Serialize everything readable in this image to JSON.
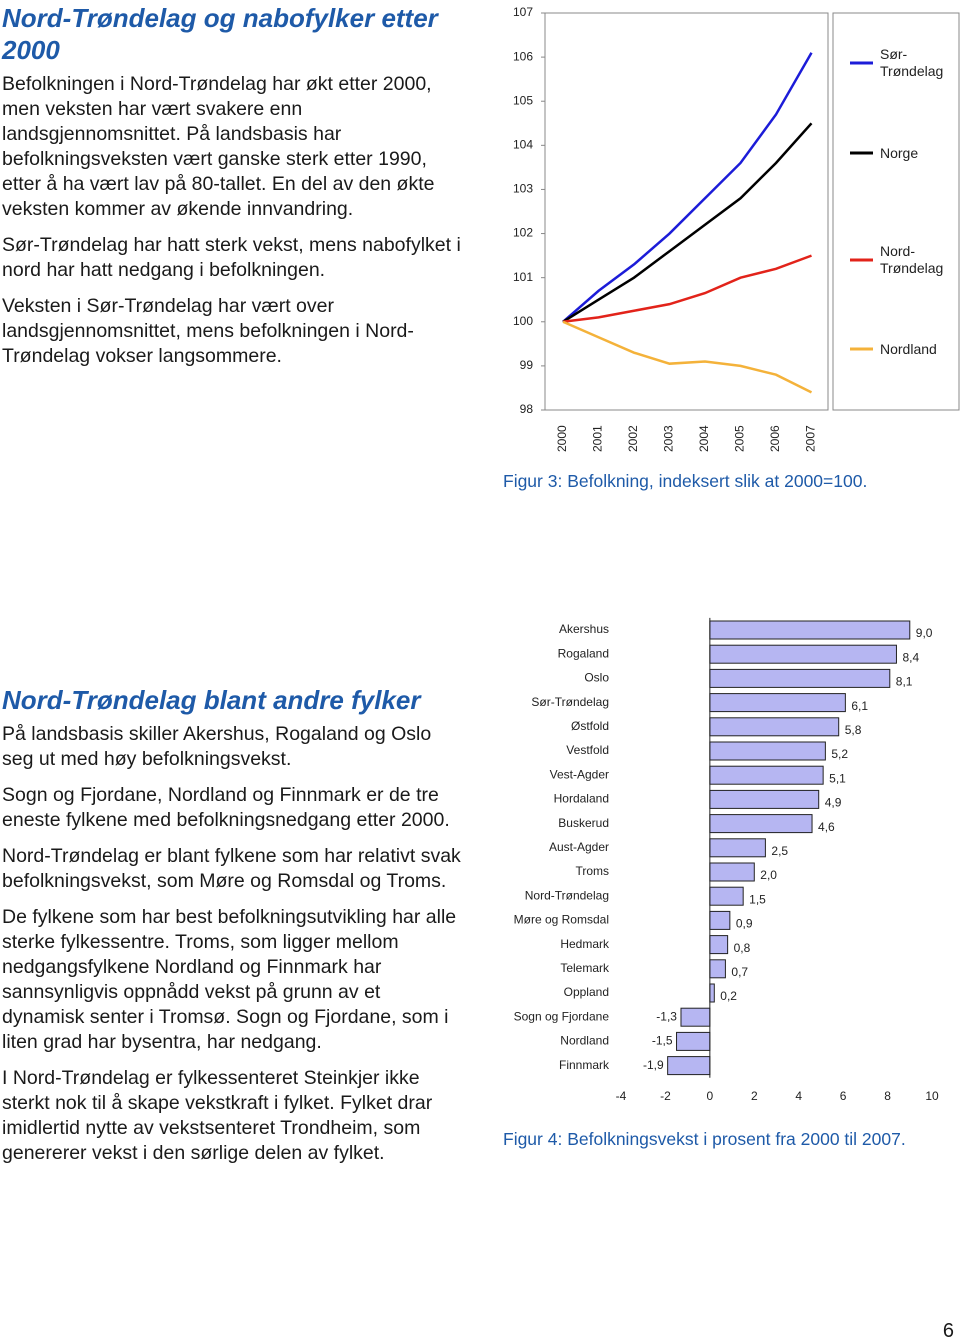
{
  "sections": [
    {
      "title": "Nord-Trøndelag og nabofylker etter 2000",
      "paragraphs": [
        "Befolkningen i Nord-Trøndelag har økt etter 2000, men veksten har vært svakere enn landsgjennomsnittet. På landsbasis har befolkningsveksten vært ganske sterk etter 1990, etter å ha vært lav på 80-tallet. En del av den økte veksten kommer av økende innvandring.",
        "Sør-Trøndelag har hatt sterk vekst, mens nabofylket i nord har hatt nedgang i befolkningen.",
        "Veksten i Sør-Trøndelag har vært over landsgjennomsnittet, mens befolkningen i Nord-Trøndelag vokser langsommere."
      ]
    },
    {
      "title": "Nord-Trøndelag blant andre fylker",
      "paragraphs": [
        "På landsbasis skiller Akershus, Rogaland og Oslo seg ut med høy befolkningsvekst.",
        "Sogn og Fjordane, Nordland og Finnmark er de tre eneste fylkene med befolkningsnedgang etter 2000.",
        "Nord-Trøndelag er blant fylkene som har relativt svak befolkningsvekst, som Møre og Romsdal og Troms.",
        "De fylkene som har best befolkningsutvikling har alle sterke fylkessentre. Troms, som ligger mellom nedgangsfylkene Nordland og Finnmark har sannsynligvis oppnådd vekst på grunn av et dynamisk senter i Tromsø. Sogn og Fjordane, som i liten grad har bysentra, har nedgang.",
        "I Nord-Trøndelag er fylkessenteret Steinkjer ikke sterkt nok til å skape vekstkraft i fylket. Fylket drar imidlertid nytte av vekstsenteret Trondheim, som genererer vekst i den sørlige delen av fylket."
      ]
    }
  ],
  "chart_data": [
    {
      "type": "line",
      "caption": "Figur 3: Befolkning, indeksert slik at 2000=100.",
      "x": [
        "2000",
        "2001",
        "2002",
        "2003",
        "2004",
        "2005",
        "2006",
        "2007"
      ],
      "series": [
        {
          "name": "Sør-Trøndelag",
          "color": "#1c1cd8",
          "values": [
            100,
            100.7,
            101.3,
            102.0,
            102.8,
            103.6,
            104.7,
            106.1
          ]
        },
        {
          "name": "Norge",
          "color": "#000000",
          "values": [
            100,
            100.5,
            101.0,
            101.6,
            102.2,
            102.8,
            103.6,
            104.5
          ]
        },
        {
          "name": "Nord-Trøndelag",
          "color": "#e2231a",
          "values": [
            100,
            100.1,
            100.25,
            100.4,
            100.65,
            101.0,
            101.2,
            101.5
          ]
        },
        {
          "name": "Nordland",
          "color": "#f4b23a",
          "values": [
            100,
            99.65,
            99.3,
            99.05,
            99.1,
            99.0,
            98.8,
            98.4
          ]
        }
      ],
      "ylim": [
        98,
        107
      ],
      "yticks": [
        98,
        99,
        100,
        101,
        102,
        103,
        104,
        105,
        106,
        107
      ],
      "legend": "right"
    },
    {
      "type": "hbar",
      "caption": "Figur 4: Befolkningsvekst i prosent fra 2000 til 2007.",
      "categories": [
        "Akershus",
        "Rogaland",
        "Oslo",
        "Sør-Trøndelag",
        "Østfold",
        "Vestfold",
        "Vest-Agder",
        "Hordaland",
        "Buskerud",
        "Aust-Agder",
        "Troms",
        "Nord-Trøndelag",
        "Møre og Romsdal",
        "Hedmark",
        "Telemark",
        "Oppland",
        "Sogn og Fjordane",
        "Nordland",
        "Finnmark"
      ],
      "values": [
        9.0,
        8.4,
        8.1,
        6.1,
        5.8,
        5.2,
        5.1,
        4.9,
        4.6,
        2.5,
        2.0,
        1.5,
        0.9,
        0.8,
        0.7,
        0.2,
        -1.3,
        -1.5,
        -1.9
      ],
      "value_labels": [
        "9,0",
        "8,4",
        "8,1",
        "6,1",
        "5,8",
        "5,2",
        "5,1",
        "4,9",
        "4,6",
        "2,5",
        "2,0",
        "1,5",
        "0,9",
        "0,8",
        "0,7",
        "0,2",
        "-1,3",
        "-1,5",
        "-1,9"
      ],
      "color": "#b6b6f2",
      "xlim": [
        -4,
        10
      ],
      "xticks": [
        -4,
        -2,
        0,
        2,
        4,
        6,
        8,
        10
      ]
    }
  ],
  "page_number": "6"
}
